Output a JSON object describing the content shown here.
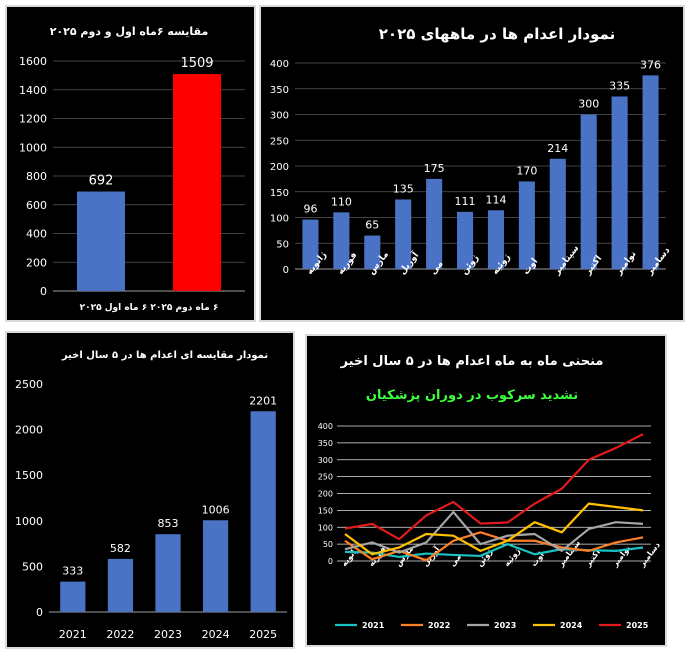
{
  "chart_data": [
    {
      "type": "bar",
      "title": "مقایسه ۶ماه اول و دوم ۲۰۲۵",
      "categories": [
        "۶ ماه اول ۲۰۲۵",
        "۶ ماه دوم ۲۰۲۵"
      ],
      "xlabel_text": "۶ ماه دوم ۲۰۲۵   ۶ ماه اول ۲۰۲۵",
      "values": [
        692,
        1509
      ],
      "bar_colors": [
        "#4a73c5",
        "#ff0000"
      ],
      "ylim": [
        0,
        1600
      ],
      "yticks": [
        "0",
        "200",
        "400",
        "600",
        "800",
        "1000",
        "1200",
        "1400",
        "1600"
      ],
      "grid": true
    },
    {
      "type": "bar",
      "title": "نمودار اعدام ها در ماههای ۲۰۲۵",
      "categories": [
        "ژانویه",
        "فوریه",
        "مارس",
        "آوریل",
        "می",
        "ژوئن",
        "ژوئیه",
        "اوت",
        "سپتامبر",
        "اکتبر",
        "نوامبر",
        "دسامبر"
      ],
      "values": [
        96,
        110,
        65,
        135,
        175,
        111,
        114,
        170,
        214,
        300,
        335,
        376
      ],
      "bar_color": "#4a73c5",
      "ylim": [
        0,
        400
      ],
      "yticks": [
        "0",
        "50",
        "100",
        "150",
        "200",
        "250",
        "300",
        "350",
        "400"
      ],
      "grid": true
    },
    {
      "type": "bar",
      "title": "نمودار مقایسه ای اعدام ها در ۵ سال اخیر",
      "categories": [
        "2021",
        "2022",
        "2023",
        "2024",
        "2025"
      ],
      "values": [
        333,
        582,
        853,
        1006,
        2201
      ],
      "bar_color": "#4a73c5",
      "ylim": [
        0,
        2500
      ],
      "yticks": [
        "0",
        "500",
        "1000",
        "1500",
        "2000",
        "2500"
      ],
      "grid": false
    },
    {
      "type": "line",
      "title": "منحنی ماه به ماه اعدام ها در ۵ سال اخیر",
      "subtitle": "تشدید سرکوب در دوران پزشکیان",
      "subtitle_color": "#3dff3d",
      "categories": [
        "ژانویه",
        "فوریه",
        "مارس",
        "آوریل",
        "می",
        "ژوئن",
        "ژوئیه",
        "اوت",
        "سپتامبر",
        "اکتبر",
        "نوامبر",
        "دسامبر"
      ],
      "ylim": [
        0,
        400
      ],
      "yticks": [
        "0",
        "50",
        "100",
        "150",
        "200",
        "250",
        "300",
        "350",
        "400"
      ],
      "grid": true,
      "legend": "bottom",
      "series": [
        {
          "name": "2021",
          "color": "#19c3c3",
          "values": [
            27,
            25,
            12,
            22,
            18,
            15,
            50,
            20,
            35,
            32,
            30,
            40
          ]
        },
        {
          "name": "2022",
          "color": "#ff7f27",
          "values": [
            60,
            5,
            30,
            2,
            60,
            85,
            60,
            60,
            40,
            30,
            55,
            70
          ]
        },
        {
          "name": "2023",
          "color": "#a6a6a6",
          "values": [
            35,
            55,
            25,
            55,
            145,
            50,
            75,
            80,
            30,
            95,
            115,
            110
          ]
        },
        {
          "name": "2024",
          "color": "#ffc000",
          "values": [
            80,
            20,
            40,
            80,
            75,
            30,
            60,
            115,
            85,
            170,
            160,
            150
          ]
        },
        {
          "name": "2025",
          "color": "#e31a1c",
          "values": [
            96,
            110,
            65,
            135,
            175,
            111,
            114,
            170,
            214,
            300,
            335,
            376
          ]
        }
      ]
    }
  ]
}
